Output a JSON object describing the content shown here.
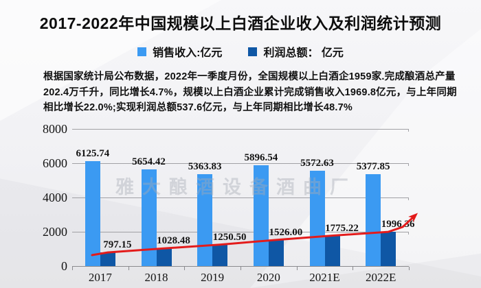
{
  "title": "2017-2022年中国规模以上白酒企业收入及利润统计预测",
  "legend": {
    "items": [
      {
        "label": "销售收入:亿元",
        "color": "#3b9af2"
      },
      {
        "label": "利润总额： 亿元",
        "color": "#0f57a5"
      }
    ]
  },
  "description": {
    "lines": [
      "根据国家统计局公布数据，2022年一季度月份，全国规模以上白酒企1959家.完成酿酒总产量",
      "202.4万千升，同比增长4.7%，规模以上白酒企业累计完成销售收入1969.8亿元，与上年同期",
      "相比增长22.0%;实现利润总额537.6亿元，与上年同期相比增长48.7%"
    ]
  },
  "watermark": "雅大酿酒设备酒曲厂",
  "chart_data": {
    "type": "bar",
    "categories": [
      "2017",
      "2018",
      "2019",
      "2020",
      "2021E",
      "2022E"
    ],
    "series": [
      {
        "name": "销售收入:亿元",
        "type": "bar",
        "color": "#3b9af2",
        "values": [
          6125.74,
          5654.42,
          5363.83,
          5896.54,
          5572.63,
          5377.85
        ],
        "labels": [
          "6125.74",
          "5654.42",
          "5363.83",
          "5896.54",
          "5572.63",
          "5377.85"
        ]
      },
      {
        "name": "利润总额：亿元",
        "type": "bar",
        "color": "#0f57a5",
        "values": [
          797.15,
          1028.48,
          1250.5,
          1526.0,
          1775.22,
          1996.36
        ],
        "labels": [
          "797.15",
          "1028.48",
          "1250.50",
          "1526.00",
          "1775.22",
          "1996.36"
        ]
      }
    ],
    "trend_line": {
      "color": "#e31b1b",
      "follows": "利润总额",
      "style": "arrow-up-right"
    },
    "y_ticks": [
      0,
      2000,
      4000,
      6000,
      8000
    ],
    "ylim": [
      0,
      8000
    ],
    "grid": true,
    "legend_position": "top"
  }
}
